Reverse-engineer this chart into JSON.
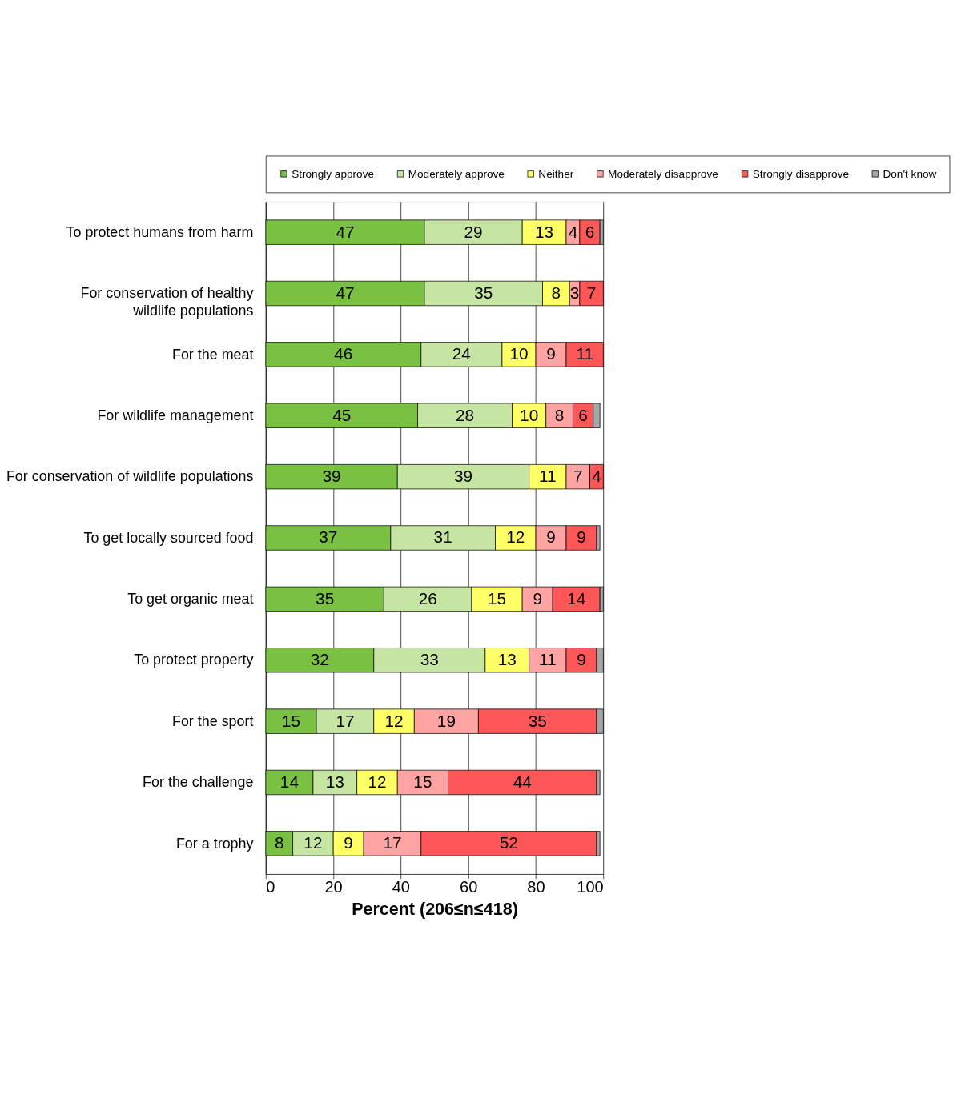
{
  "chart_data": {
    "type": "bar",
    "orientation": "horizontal",
    "stacked": true,
    "categories": [
      "To protect humans from harm",
      "For conservation of healthy wildlife populations",
      "For the meat",
      "For wildlife management",
      "For conservation of wildlife populations",
      "To get locally sourced food",
      "To get organic meat",
      "To protect property",
      "For the sport",
      "For the challenge",
      "For a trophy"
    ],
    "series": [
      {
        "name": "Strongly approve",
        "color": "#7ac143",
        "values": [
          47,
          47,
          46,
          45,
          39,
          37,
          35,
          32,
          15,
          14,
          8
        ],
        "value_labels": [
          "47",
          "47",
          "46",
          "45",
          "39",
          "37",
          "35",
          "32",
          "15",
          "14",
          "8"
        ]
      },
      {
        "name": "Moderately approve",
        "color": "#c6e5a3",
        "values": [
          29,
          35,
          24,
          28,
          39,
          31,
          26,
          33,
          17,
          13,
          12
        ],
        "value_labels": [
          "29",
          "35",
          "24",
          "28",
          "39",
          "31",
          "26",
          "33",
          "17",
          "13",
          "12"
        ]
      },
      {
        "name": "Neither",
        "color": "#ffff66",
        "values": [
          13,
          8,
          10,
          10,
          11,
          12,
          15,
          13,
          12,
          12,
          9
        ],
        "value_labels": [
          "13",
          "8",
          "10",
          "10",
          "11",
          "12",
          "15",
          "13",
          "12",
          "12",
          "9"
        ]
      },
      {
        "name": "Moderately disapprove",
        "color": "#ffa3a3",
        "values": [
          4,
          3,
          9,
          8,
          7,
          9,
          9,
          11,
          19,
          15,
          17
        ],
        "value_labels": [
          "4",
          "3",
          "9",
          "8",
          "7",
          "9",
          "9",
          "11",
          "19",
          "15",
          "17"
        ]
      },
      {
        "name": "Strongly disapprove",
        "color": "#ff5757",
        "values": [
          6,
          7,
          11,
          6,
          4,
          9,
          14,
          9,
          35,
          44,
          52
        ],
        "value_labels": [
          "6",
          "7",
          "11",
          "6",
          "4",
          "9",
          "14",
          "9",
          "35",
          "44",
          "52"
        ]
      },
      {
        "name": "Don't know",
        "color": "#a6a6a6",
        "values": [
          1,
          null,
          null,
          2,
          null,
          1,
          1,
          2,
          2,
          1,
          1
        ]
      }
    ],
    "xlim": [
      0,
      100
    ],
    "xticks": [
      0,
      20,
      40,
      60,
      80,
      100
    ],
    "xlabel": "Percent (206≤n≤418)",
    "grid": "x",
    "legend": "top"
  }
}
